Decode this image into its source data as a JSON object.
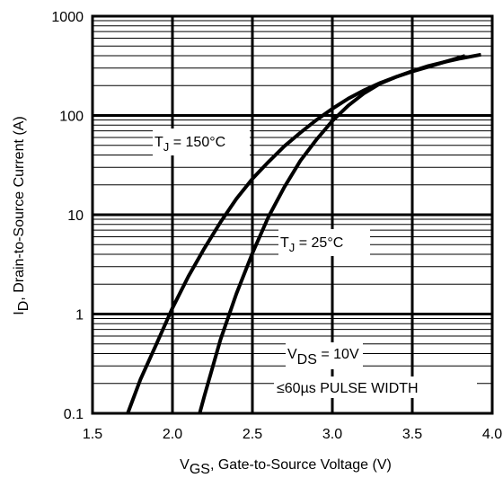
{
  "chart_data": {
    "type": "line",
    "x_axis": {
      "label_main": "V",
      "label_sub": "GS",
      "label_rest": ", Gate-to-Source Voltage (V)",
      "range": [
        1.5,
        4.0
      ],
      "ticks": [
        1.5,
        2.0,
        2.5,
        3.0,
        3.5,
        4.0
      ],
      "tick_labels": [
        "1.5",
        "2.0",
        "2.5",
        "3.0",
        "3.5",
        "4.0"
      ],
      "grid": true
    },
    "y_axis": {
      "label_main": "I",
      "label_sub": "D",
      "label_rest": ", Drain-to-Source Current (A)",
      "scale": "log",
      "range": [
        0.1,
        1000
      ],
      "ticks": [
        0.1,
        1,
        10,
        100,
        1000
      ],
      "tick_labels": [
        "0.1",
        "1",
        "10",
        "100",
        "1000"
      ],
      "grid": true,
      "minor_grid": true
    },
    "series": [
      {
        "label_main": "T",
        "label_sub": "J",
        "label_rest": " = 150°C",
        "points": [
          [
            1.72,
            0.1
          ],
          [
            1.8,
            0.22
          ],
          [
            1.9,
            0.5
          ],
          [
            2.0,
            1.15
          ],
          [
            2.1,
            2.4
          ],
          [
            2.2,
            4.6
          ],
          [
            2.3,
            8.4
          ],
          [
            2.4,
            14.5
          ],
          [
            2.5,
            23
          ],
          [
            2.6,
            34
          ],
          [
            2.7,
            49
          ],
          [
            2.8,
            67
          ],
          [
            2.9,
            90
          ],
          [
            3.0,
            117
          ],
          [
            3.1,
            148
          ],
          [
            3.2,
            180
          ],
          [
            3.3,
            213
          ],
          [
            3.4,
            245
          ],
          [
            3.5,
            277
          ],
          [
            3.6,
            308
          ],
          [
            3.7,
            345
          ],
          [
            3.83,
            398
          ]
        ]
      },
      {
        "label_main": "T",
        "label_sub": "J",
        "label_rest": " = 25°C",
        "points": [
          [
            2.17,
            0.1
          ],
          [
            2.2,
            0.15
          ],
          [
            2.3,
            0.55
          ],
          [
            2.4,
            1.6
          ],
          [
            2.5,
            4.1
          ],
          [
            2.6,
            9.5
          ],
          [
            2.7,
            19
          ],
          [
            2.8,
            35
          ],
          [
            2.9,
            57
          ],
          [
            3.0,
            88
          ],
          [
            3.1,
            126
          ],
          [
            3.2,
            168
          ],
          [
            3.3,
            210
          ],
          [
            3.4,
            245
          ],
          [
            3.5,
            280
          ],
          [
            3.6,
            315
          ],
          [
            3.7,
            345
          ],
          [
            3.8,
            375
          ],
          [
            3.93,
            410
          ]
        ]
      }
    ],
    "annotations": [
      {
        "label_main": "V",
        "label_sub": "DS",
        "label_rest": " = 10V"
      },
      {
        "text": "≤60µs PULSE WIDTH"
      }
    ],
    "colors": {
      "line": "#000000",
      "grid": "#000000",
      "background": "#ffffff"
    }
  }
}
